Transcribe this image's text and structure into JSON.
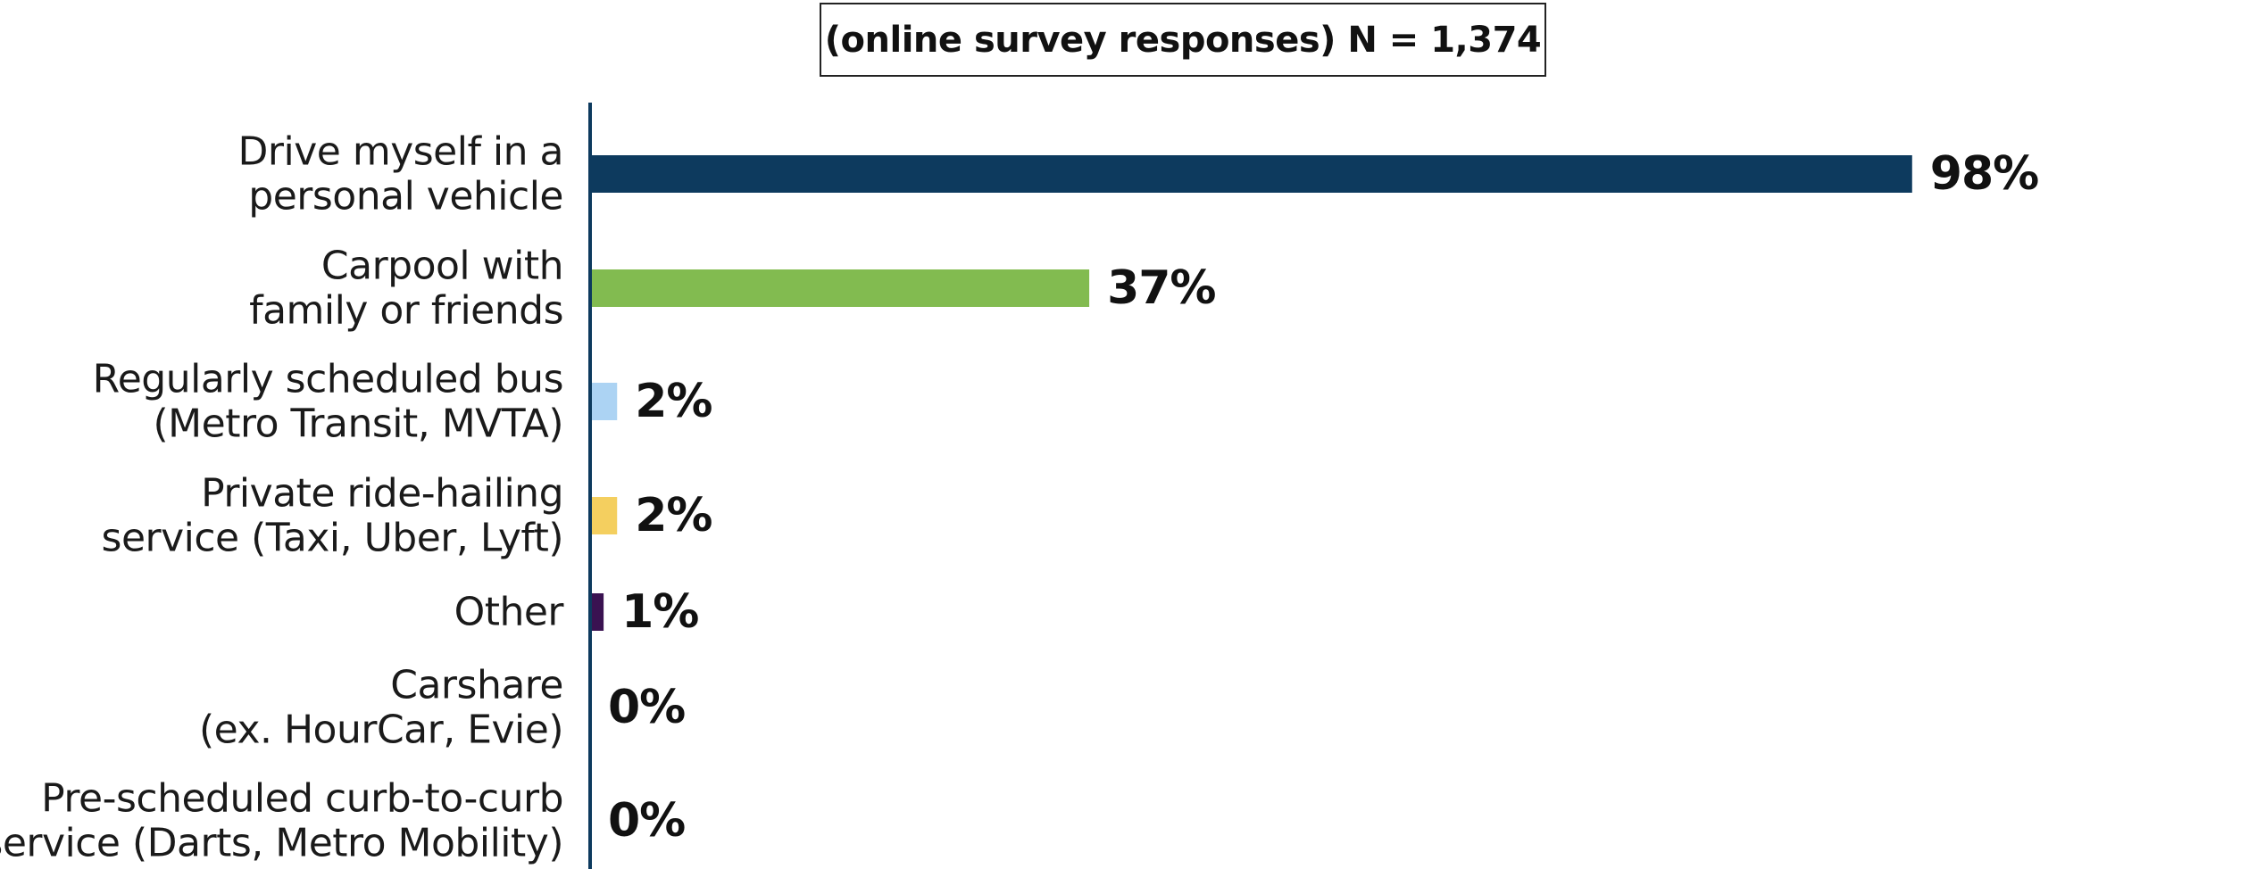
{
  "subtitle": "(online survey responses) N = 1,374",
  "chart_data": {
    "type": "bar",
    "orientation": "horizontal",
    "title": "",
    "subtitle": "(online survey responses) N = 1,374",
    "xlabel": "",
    "ylabel": "",
    "xlim": [
      0,
      100
    ],
    "grid": false,
    "legend": "none",
    "unit": "%",
    "categories": [
      [
        "Drive myself in a",
        "personal vehicle"
      ],
      [
        "Carpool with",
        "family or friends"
      ],
      [
        "Regularly scheduled bus",
        "(Metro Transit, MVTA)"
      ],
      [
        "Private ride-hailing",
        "service (Taxi, Uber, Lyft)"
      ],
      [
        "Other"
      ],
      [
        "Carshare",
        "(ex. HourCar, Evie)"
      ],
      [
        "Pre-scheduled curb-to-curb",
        "service (Darts, Metro Mobility)"
      ]
    ],
    "values": [
      98,
      37,
      2,
      2,
      1,
      0,
      0
    ],
    "value_labels": [
      "98%",
      "37%",
      "2%",
      "2%",
      "1%",
      "0%",
      "0%"
    ],
    "colors": [
      "#0d3a5e",
      "#82bb50",
      "#acd3f3",
      "#f4cf5f",
      "#3a1251",
      "#0d3a5e",
      "#0d3a5e"
    ],
    "axis_color": "#0d3a5e"
  }
}
